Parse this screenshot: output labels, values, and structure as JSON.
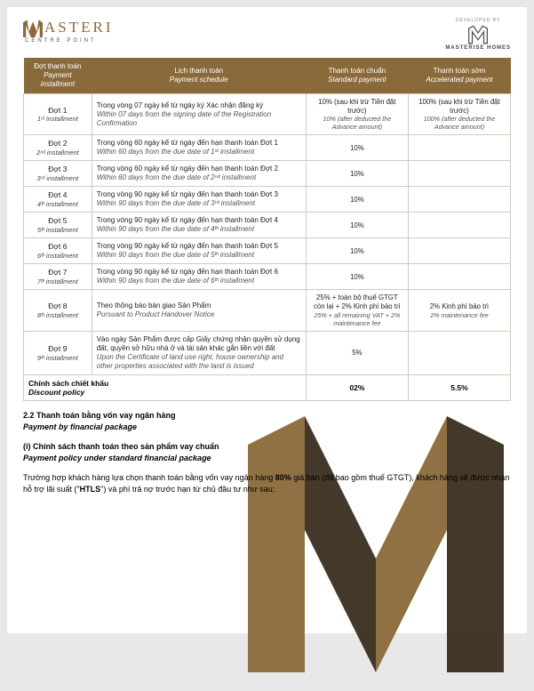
{
  "header": {
    "brand": "ASTERI",
    "brand_sub": "CENTRE POINT",
    "developed_by": "DEVELOPED BY",
    "developer_name": "MASTERISE HOMES"
  },
  "colors": {
    "brand_gold": "#8a6a3a",
    "brand_dark": "#3a2e1f",
    "border": "#d2c9bd",
    "text": "#222222",
    "bg": "#ffffff"
  },
  "table": {
    "col_widths_pct": [
      14,
      44,
      21,
      21
    ],
    "headers": [
      {
        "vn": "Đợt thanh toán",
        "en": "Payment installment"
      },
      {
        "vn": "Lịch thanh toán",
        "en": "Payment schedule"
      },
      {
        "vn": "Thanh toán chuẩn",
        "en": "Standard payment"
      },
      {
        "vn": "Thanh toán sớm",
        "en": "Accelerated payment"
      }
    ],
    "rows": [
      {
        "inst_vn": "Đợt 1",
        "inst_en": "1ˢᵗ installment",
        "sched_vn": "Trong vòng 07 ngày kể từ ngày ký Xác nhận đăng ký",
        "sched_en": "Within 07 days from the signing date of the Registration Confirmation",
        "std_vn": "10% (sau khi trừ Tiền đặt trước)",
        "std_en": "10% (after deducted the Advance amount)",
        "acc_vn": "100% (sau khi trừ Tiền đặt trước)",
        "acc_en": "100% (after deducted the Advance amount)"
      },
      {
        "inst_vn": "Đợt 2",
        "inst_en": "2ⁿᵈ installment",
        "sched_vn": "Trong vòng 60 ngày kể từ ngày đến hạn thanh toán Đợt 1",
        "sched_en": "Within 60 days from the due date of 1ˢᵗ installment",
        "std_vn": "10%",
        "std_en": "",
        "acc_vn": "",
        "acc_en": ""
      },
      {
        "inst_vn": "Đợt 3",
        "inst_en": "3ʳᵈ installment",
        "sched_vn": "Trong vòng 60 ngày kể từ ngày đến hạn thanh toán Đợt 2",
        "sched_en": "Within 60 days from the due date of 2ⁿᵈ installment",
        "std_vn": "10%",
        "std_en": "",
        "acc_vn": "",
        "acc_en": ""
      },
      {
        "inst_vn": "Đợt 4",
        "inst_en": "4ᵗʰ installment",
        "sched_vn": "Trong vòng 90 ngày kể từ ngày đến hạn thanh toán Đợt 3",
        "sched_en": "Within 90 days from the due date of 3ʳᵈ installment",
        "std_vn": "10%",
        "std_en": "",
        "acc_vn": "",
        "acc_en": ""
      },
      {
        "inst_vn": "Đợt 5",
        "inst_en": "5ᵗʰ installment",
        "sched_vn": "Trong vòng 90 ngày kể từ ngày đến hạn thanh toán Đợt 4",
        "sched_en": "Within 90 days from the due date of 4ᵗʰ installment",
        "std_vn": "10%",
        "std_en": "",
        "acc_vn": "",
        "acc_en": ""
      },
      {
        "inst_vn": "Đợt 6",
        "inst_en": "6ᵗʰ installment",
        "sched_vn": "Trong vòng 90 ngày kể từ ngày đến hạn thanh toán Đợt 5",
        "sched_en": "Within 90 days from the due date of 5ᵗʰ installment",
        "std_vn": "10%",
        "std_en": "",
        "acc_vn": "",
        "acc_en": ""
      },
      {
        "inst_vn": "Đợt 7",
        "inst_en": "7ᵗʰ installment",
        "sched_vn": "Trong vòng 90 ngày kể từ ngày đến hạn thanh toán Đợt 6",
        "sched_en": "Within 90 days from the due date of 6ᵗʰ installment",
        "std_vn": "10%",
        "std_en": "",
        "acc_vn": "",
        "acc_en": ""
      },
      {
        "inst_vn": "Đợt 8",
        "inst_en": "8ᵗʰ installment",
        "sched_vn": "Theo thông báo bàn giao Sản Phẩm",
        "sched_en": "Pursuant to Product Handover Notice",
        "std_vn": "25% + toàn bộ thuế GTGT còn lại + 2% Kinh phí bảo trì",
        "std_en": "25% + all remaining VAT + 2% maintenance fee",
        "acc_vn": "2% Kinh phí bảo trì",
        "acc_en": "2% maintenance fee"
      },
      {
        "inst_vn": "Đợt 9",
        "inst_en": "9ᵗʰ installment",
        "sched_vn": "Vào ngày Sản Phẩm được cấp Giấy chứng nhận quyền sử dụng đất, quyền sở hữu nhà ở và tài sản khác gắn liền với đất",
        "sched_en": "Upon the Certificate of land use right, house ownership and other properties associated with the land is issued",
        "std_vn": "5%",
        "std_en": "",
        "acc_vn": "",
        "acc_en": ""
      }
    ],
    "footer": {
      "label_vn": "Chính sách chiết khấu",
      "label_en": "Discount policy",
      "std": "02%",
      "acc": "5.5%"
    }
  },
  "sections": {
    "s1_vn": "2.2 Thanh toán bằng vốn vay ngân hàng",
    "s1_en": "Payment by financial package",
    "s2_vn": "(i) Chính sách thanh toán theo sản phẩm vay chuẩn",
    "s2_en": "Payment policy under standard financial package"
  },
  "paragraph": {
    "pre": "Trường hợp khách hàng lựa chọn thanh toán bằng vốn vay ngân hàng ",
    "pct": "80%",
    "mid": " giá bán (đã bao gồm thuế GTGT), khách hàng sẽ được nhận hỗ trợ lãi suất (\"",
    "htls": "HTLS",
    "post": "\") và phí trả nợ trước hạn từ chủ đầu tư như sau:"
  }
}
